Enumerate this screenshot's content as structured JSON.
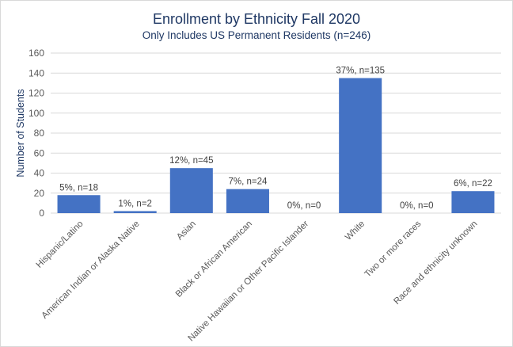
{
  "chart_data": {
    "type": "bar",
    "title": "Enrollment by Ethnicity Fall 2020",
    "subtitle": "Only Includes US Permanent Residents (n=246)",
    "xlabel": "",
    "ylabel": "Number  of Students",
    "ylim": [
      0,
      160
    ],
    "yticks": [
      0,
      20,
      40,
      60,
      80,
      100,
      120,
      140,
      160
    ],
    "grid": true,
    "legend": "none",
    "bar_color": "#4472c4",
    "categories": [
      "Hispanic/Latino",
      "American Indian or Alaska Native",
      "Asian",
      "Black or African American",
      "Native Hawaiian or Other Pacific Islander",
      "White",
      "Two or more races",
      "Race and ethnicity unknown"
    ],
    "values": [
      18,
      2,
      45,
      24,
      0,
      135,
      0,
      22
    ],
    "data_labels": [
      "5%, n=18",
      "1%, n=2",
      "12%, n=45",
      "7%, n=24",
      "0%, n=0",
      "37%, n=135",
      "0%, n=0",
      "6%, n=22"
    ]
  }
}
